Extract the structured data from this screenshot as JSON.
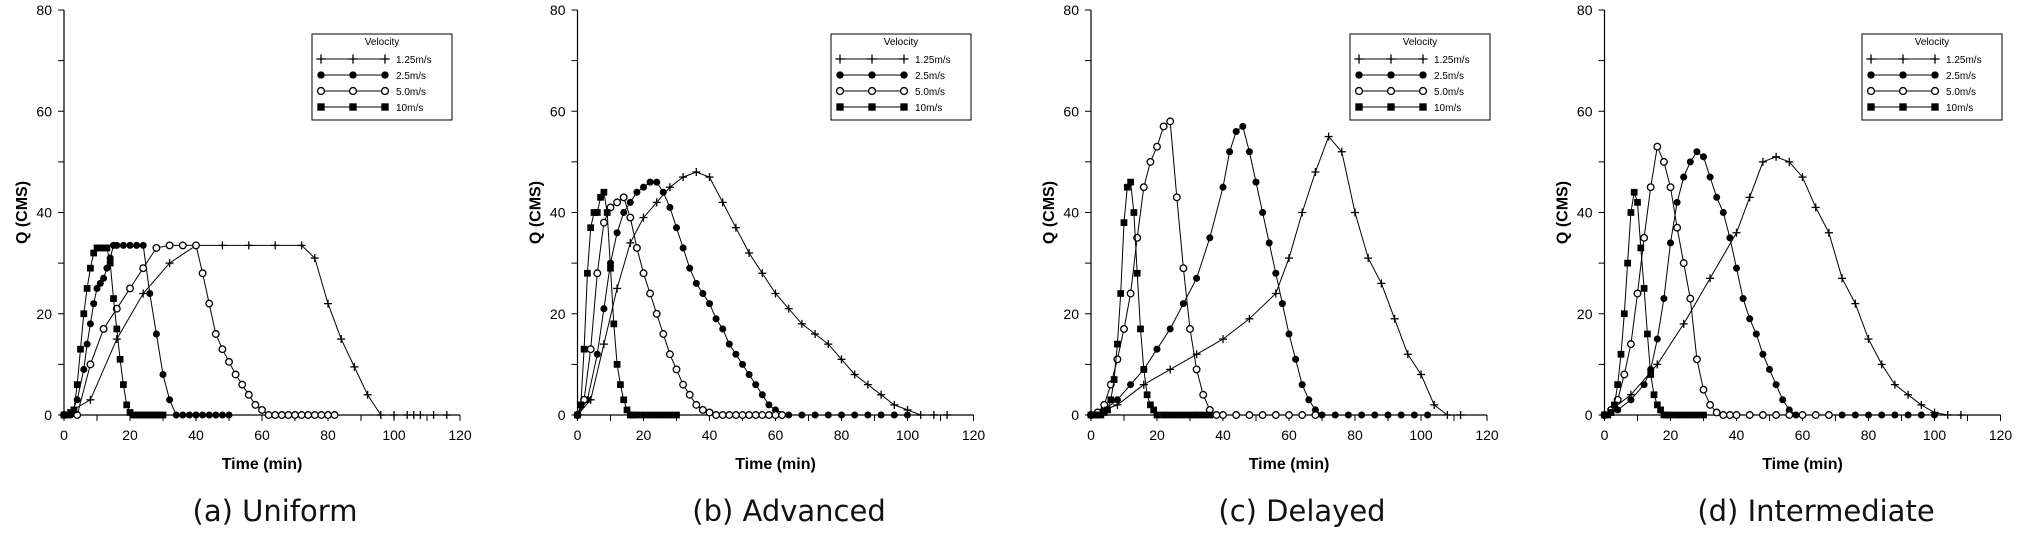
{
  "legend_title": "Velocity",
  "chart_data": [
    {
      "type": "line",
      "caption": "(a)  Uniform",
      "xlabel": "Time (min)",
      "ylabel": "Q (CMS)",
      "xlim": [
        0,
        120
      ],
      "ylim": [
        0,
        80
      ],
      "xticks": [
        0,
        20,
        40,
        60,
        80,
        100,
        120
      ],
      "yticks": [
        0,
        20,
        40,
        60,
        80
      ],
      "grid": false,
      "legend_position": "top-right",
      "series": [
        {
          "name": "1.25m/s",
          "marker": "plus",
          "x": [
            0,
            8,
            16,
            24,
            32,
            40,
            48,
            56,
            64,
            72,
            76,
            80,
            84,
            88,
            92,
            96,
            100,
            104,
            106,
            108,
            112,
            116
          ],
          "y": [
            0,
            3,
            15,
            24,
            30,
            33.5,
            33.5,
            33.5,
            33.5,
            33.5,
            31,
            22,
            15,
            9.5,
            4,
            0,
            0,
            0,
            0,
            0,
            0,
            0
          ]
        },
        {
          "name": "2.5m/s",
          "marker": "filled-circle",
          "x": [
            0,
            2,
            4,
            6,
            7,
            8,
            9,
            10,
            11,
            12,
            13,
            14,
            15,
            16,
            18,
            20,
            22,
            24,
            26,
            28,
            30,
            32,
            34,
            36,
            38,
            40,
            42,
            44,
            46,
            48,
            50
          ],
          "y": [
            0,
            0,
            3,
            9,
            14,
            18,
            22,
            25,
            26,
            27,
            29,
            31,
            33.5,
            33.5,
            33.5,
            33.5,
            33.5,
            33.5,
            24,
            16,
            8,
            3,
            0,
            0,
            0,
            0,
            0,
            0,
            0,
            0,
            0
          ]
        },
        {
          "name": "5.0m/s",
          "marker": "open-circle",
          "x": [
            0,
            4,
            8,
            12,
            16,
            20,
            24,
            28,
            32,
            36,
            40,
            42,
            44,
            46,
            48,
            50,
            52,
            54,
            56,
            58,
            60,
            62,
            64,
            66,
            68,
            70,
            72,
            74,
            76,
            78,
            80,
            82
          ],
          "y": [
            0,
            0,
            10,
            17,
            21,
            25,
            29,
            33,
            33.5,
            33.5,
            33.5,
            28,
            22,
            16,
            13,
            10.5,
            8,
            6,
            4,
            2,
            1,
            0,
            0,
            0,
            0,
            0,
            0,
            0,
            0,
            0,
            0,
            0
          ]
        },
        {
          "name": "10m/s",
          "marker": "filled-square",
          "x": [
            0,
            1,
            2,
            3,
            4,
            5,
            6,
            7,
            8,
            9,
            10,
            11,
            12,
            13,
            14,
            15,
            16,
            17,
            18,
            19,
            20,
            21,
            22,
            23,
            24,
            25,
            26,
            27,
            28,
            29,
            30
          ],
          "y": [
            0,
            0,
            0.5,
            1,
            6,
            13,
            20,
            25,
            29,
            32,
            33,
            33,
            33,
            33,
            30,
            23,
            17,
            11,
            6,
            2,
            0.5,
            0,
            0,
            0,
            0,
            0,
            0,
            0,
            0,
            0,
            0
          ]
        }
      ]
    },
    {
      "type": "line",
      "caption": "(b)  Advanced",
      "xlabel": "Time (min)",
      "ylabel": "Q (CMS)",
      "xlim": [
        0,
        120
      ],
      "ylim": [
        0,
        80
      ],
      "xticks": [
        0,
        20,
        40,
        60,
        80,
        100,
        120
      ],
      "yticks": [
        0,
        20,
        40,
        60,
        80
      ],
      "grid": false,
      "legend_position": "top-right",
      "series": [
        {
          "name": "1.25m/s",
          "marker": "plus",
          "x": [
            0,
            4,
            8,
            12,
            16,
            20,
            24,
            28,
            32,
            36,
            40,
            44,
            48,
            52,
            56,
            60,
            64,
            68,
            72,
            76,
            80,
            84,
            88,
            92,
            96,
            100,
            104,
            108,
            112
          ],
          "y": [
            0,
            3,
            14,
            25,
            34,
            39,
            42,
            45,
            47,
            48,
            47,
            42,
            37,
            32,
            28,
            24,
            21,
            18,
            16,
            14,
            11,
            8,
            6,
            4,
            2,
            1,
            0,
            0,
            0
          ]
        },
        {
          "name": "2.5m/s",
          "marker": "filled-circle",
          "x": [
            0,
            3,
            6,
            8,
            10,
            12,
            14,
            16,
            18,
            20,
            22,
            24,
            26,
            28,
            30,
            32,
            34,
            36,
            38,
            40,
            42,
            44,
            46,
            48,
            50,
            52,
            54,
            56,
            58,
            60,
            64,
            68,
            72,
            76,
            80,
            84,
            88,
            92,
            96,
            100
          ],
          "y": [
            0,
            3,
            12,
            21,
            30,
            36,
            40,
            42,
            44,
            45,
            46,
            46,
            44,
            41,
            37,
            33,
            29,
            26,
            24,
            22,
            19,
            17,
            14,
            12,
            10,
            8,
            6,
            4,
            2,
            1,
            0,
            0,
            0,
            0,
            0,
            0,
            0,
            0,
            0,
            0
          ]
        },
        {
          "name": "5.0m/s",
          "marker": "open-circle",
          "x": [
            0,
            2,
            4,
            6,
            8,
            10,
            12,
            14,
            16,
            18,
            20,
            22,
            24,
            26,
            28,
            30,
            32,
            34,
            36,
            38,
            40,
            42,
            44,
            46,
            48,
            50,
            52,
            54,
            56,
            58,
            60,
            62
          ],
          "y": [
            0,
            3,
            13,
            28,
            38,
            41,
            42,
            43,
            39,
            33,
            28,
            24,
            20,
            16,
            12,
            9,
            6,
            4,
            2,
            1,
            0.5,
            0,
            0,
            0,
            0,
            0,
            0,
            0,
            0,
            0,
            0,
            0
          ]
        },
        {
          "name": "10m/s",
          "marker": "filled-square",
          "x": [
            0,
            1,
            2,
            3,
            4,
            5,
            6,
            7,
            8,
            9,
            10,
            11,
            12,
            13,
            14,
            15,
            16,
            17,
            18,
            20,
            22,
            24,
            26,
            28,
            30
          ],
          "y": [
            0,
            2,
            13,
            28,
            37,
            40,
            40,
            43,
            44,
            40,
            29,
            18,
            10,
            6,
            3,
            1,
            0,
            0,
            0,
            0,
            0,
            0,
            0,
            0,
            0
          ]
        }
      ]
    },
    {
      "type": "line",
      "caption": "(c)  Delayed",
      "xlabel": "Time (min)",
      "ylabel": "Q (CMS)",
      "xlim": [
        0,
        120
      ],
      "ylim": [
        0,
        80
      ],
      "xticks": [
        0,
        20,
        40,
        60,
        80,
        100,
        120
      ],
      "yticks": [
        0,
        20,
        40,
        60,
        80
      ],
      "grid": false,
      "legend_position": "top-right",
      "series": [
        {
          "name": "1.25m/s",
          "marker": "plus",
          "x": [
            0,
            8,
            16,
            24,
            32,
            40,
            48,
            56,
            60,
            64,
            68,
            72,
            76,
            80,
            84,
            88,
            92,
            96,
            100,
            104,
            108,
            112
          ],
          "y": [
            0,
            2,
            6,
            9,
            12,
            15,
            19,
            24,
            31,
            40,
            48,
            55,
            52,
            40,
            31,
            26,
            19,
            12,
            8,
            2,
            0,
            0
          ]
        },
        {
          "name": "2.5m/s",
          "marker": "filled-circle",
          "x": [
            0,
            4,
            8,
            12,
            16,
            20,
            24,
            28,
            32,
            36,
            40,
            42,
            44,
            46,
            48,
            50,
            52,
            54,
            56,
            58,
            60,
            62,
            64,
            66,
            68,
            70,
            74,
            78,
            82,
            86,
            90,
            94,
            98,
            102
          ],
          "y": [
            0,
            1,
            3,
            6,
            9,
            13,
            17,
            22,
            27,
            35,
            45,
            52,
            56,
            57,
            52,
            46,
            40,
            34,
            28,
            22,
            16,
            11,
            6,
            3,
            1,
            0,
            0,
            0,
            0,
            0,
            0,
            0,
            0,
            0
          ]
        },
        {
          "name": "5.0m/s",
          "marker": "open-circle",
          "x": [
            0,
            2,
            4,
            6,
            8,
            10,
            12,
            14,
            16,
            18,
            20,
            22,
            24,
            26,
            28,
            30,
            32,
            34,
            36,
            38,
            40,
            44,
            48,
            52,
            56,
            60,
            64,
            68
          ],
          "y": [
            0,
            0.5,
            2,
            6,
            11,
            17,
            24,
            35,
            45,
            50,
            53,
            57,
            58,
            43,
            29,
            17,
            9,
            4,
            1,
            0,
            0,
            0,
            0,
            0,
            0,
            0,
            0,
            0
          ]
        },
        {
          "name": "10m/s",
          "marker": "filled-square",
          "x": [
            0,
            1,
            2,
            3,
            4,
            5,
            6,
            7,
            8,
            9,
            10,
            11,
            12,
            13,
            14,
            15,
            16,
            17,
            18,
            19,
            20,
            22,
            24,
            26,
            28,
            30,
            32,
            34,
            36
          ],
          "y": [
            0,
            0,
            0,
            0,
            0.5,
            1,
            3,
            7,
            14,
            24,
            38,
            45,
            46,
            40,
            28,
            17,
            9,
            4,
            2,
            1,
            0,
            0,
            0,
            0,
            0,
            0,
            0,
            0,
            0
          ]
        }
      ]
    },
    {
      "type": "line",
      "caption": "(d)  Intermediate",
      "xlabel": "Time (min)",
      "ylabel": "Q (CMS)",
      "xlim": [
        0,
        120
      ],
      "ylim": [
        0,
        80
      ],
      "xticks": [
        0,
        20,
        40,
        60,
        80,
        100,
        120
      ],
      "yticks": [
        0,
        20,
        40,
        60,
        80
      ],
      "grid": false,
      "legend_position": "top-right",
      "series": [
        {
          "name": "1.25m/s",
          "marker": "plus",
          "x": [
            0,
            8,
            16,
            24,
            32,
            40,
            44,
            48,
            52,
            56,
            60,
            64,
            68,
            72,
            76,
            80,
            84,
            88,
            92,
            96,
            100,
            104,
            108
          ],
          "y": [
            0,
            4,
            10,
            18,
            27,
            36,
            43,
            50,
            51,
            50,
            47,
            41,
            36,
            27,
            22,
            15,
            10,
            6,
            4,
            2,
            0.5,
            0,
            0
          ]
        },
        {
          "name": "2.5m/s",
          "marker": "filled-circle",
          "x": [
            0,
            4,
            8,
            12,
            14,
            16,
            18,
            20,
            22,
            24,
            26,
            28,
            30,
            32,
            34,
            36,
            38,
            40,
            42,
            44,
            46,
            48,
            50,
            52,
            54,
            56,
            58,
            60,
            64,
            68,
            72,
            76,
            80,
            84,
            88,
            92,
            96,
            100
          ],
          "y": [
            0,
            1,
            3,
            6,
            9,
            15,
            23,
            34,
            42,
            47,
            50,
            52,
            51,
            47,
            43,
            40,
            35,
            29,
            23,
            19,
            16,
            12,
            9,
            6,
            3,
            1,
            0,
            0,
            0,
            0,
            0,
            0,
            0,
            0,
            0,
            0,
            0,
            0
          ]
        },
        {
          "name": "5.0m/s",
          "marker": "open-circle",
          "x": [
            0,
            2,
            4,
            6,
            8,
            10,
            12,
            14,
            16,
            18,
            20,
            22,
            24,
            26,
            28,
            30,
            32,
            34,
            36,
            38,
            40,
            44,
            48,
            52,
            56,
            60,
            64,
            68
          ],
          "y": [
            0,
            1,
            3,
            8,
            14,
            24,
            35,
            45,
            53,
            50,
            45,
            37,
            30,
            23,
            11,
            5,
            2,
            0.5,
            0,
            0,
            0,
            0,
            0,
            0,
            0,
            0,
            0,
            0
          ]
        },
        {
          "name": "10m/s",
          "marker": "filled-square",
          "x": [
            0,
            1,
            2,
            3,
            4,
            5,
            6,
            7,
            8,
            9,
            10,
            11,
            12,
            13,
            14,
            15,
            16,
            17,
            18,
            19,
            20,
            22,
            24,
            26,
            28,
            30
          ],
          "y": [
            0,
            0,
            0.5,
            2,
            6,
            12,
            20,
            30,
            40,
            44,
            42,
            33,
            25,
            16,
            8,
            4,
            2,
            1,
            0,
            0,
            0,
            0,
            0,
            0,
            0,
            0
          ]
        }
      ]
    }
  ]
}
